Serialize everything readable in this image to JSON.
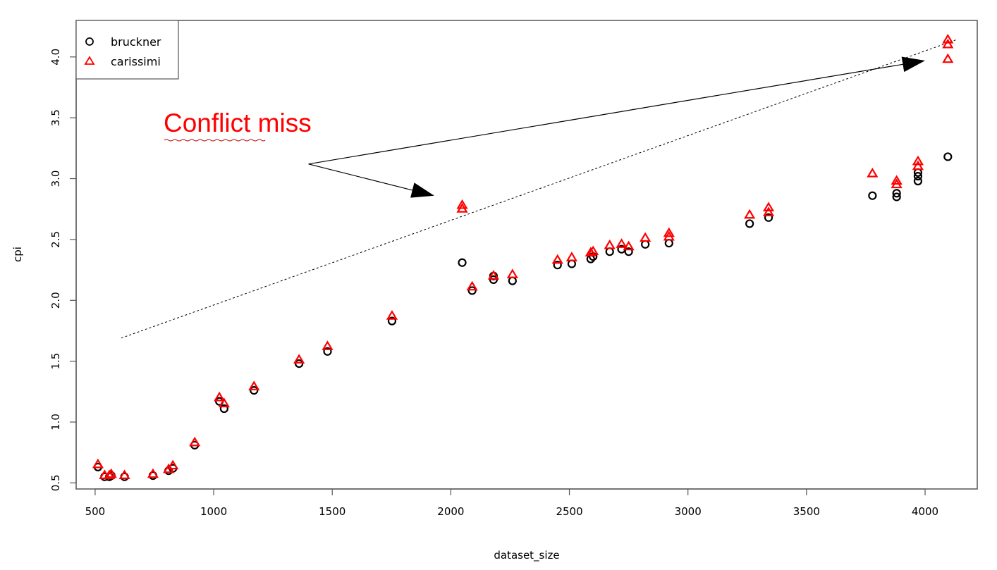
{
  "chart_data": {
    "type": "scatter",
    "title": "",
    "xlabel": "dataset_size",
    "ylabel": "cpi",
    "xlim": [
      420,
      4220
    ],
    "ylim": [
      0.45,
      4.3
    ],
    "xticks": [
      500,
      1000,
      1500,
      2000,
      2500,
      3000,
      3500,
      4000
    ],
    "xtick_labels": [
      "500",
      "1000",
      "1500",
      "2000",
      "2500",
      "3000",
      "3500",
      "4000"
    ],
    "yticks": [
      0.5,
      1.0,
      1.5,
      2.0,
      2.5,
      3.0,
      3.5,
      4.0
    ],
    "ytick_labels": [
      "0.5",
      "1.0",
      "1.5",
      "2.0",
      "2.5",
      "3.0",
      "3.5",
      "4.0"
    ],
    "grid": false,
    "legend_position": "top-left",
    "series": [
      {
        "name": "bruckner",
        "marker": "circle",
        "color": "#000000",
        "points": [
          [
            512,
            0.63
          ],
          [
            540,
            0.55
          ],
          [
            560,
            0.55
          ],
          [
            568,
            0.56
          ],
          [
            624,
            0.55
          ],
          [
            744,
            0.56
          ],
          [
            810,
            0.6
          ],
          [
            828,
            0.62
          ],
          [
            920,
            0.81
          ],
          [
            1024,
            1.17
          ],
          [
            1044,
            1.11
          ],
          [
            1170,
            1.26
          ],
          [
            1360,
            1.48
          ],
          [
            1480,
            1.58
          ],
          [
            1752,
            1.83
          ],
          [
            2048,
            2.31
          ],
          [
            2090,
            2.08
          ],
          [
            2180,
            2.17
          ],
          [
            2180,
            2.2
          ],
          [
            2260,
            2.16
          ],
          [
            2450,
            2.29
          ],
          [
            2510,
            2.3
          ],
          [
            2590,
            2.34
          ],
          [
            2600,
            2.36
          ],
          [
            2670,
            2.4
          ],
          [
            2720,
            2.42
          ],
          [
            2750,
            2.4
          ],
          [
            2820,
            2.46
          ],
          [
            2920,
            2.47
          ],
          [
            3260,
            2.63
          ],
          [
            3340,
            2.68
          ],
          [
            3778,
            2.86
          ],
          [
            3880,
            2.85
          ],
          [
            3880,
            2.88
          ],
          [
            3970,
            2.98
          ],
          [
            3970,
            3.02
          ],
          [
            3970,
            3.05
          ],
          [
            4096,
            3.18
          ]
        ]
      },
      {
        "name": "carissimi",
        "marker": "triangle",
        "color": "#ff0000",
        "points": [
          [
            512,
            0.65
          ],
          [
            540,
            0.56
          ],
          [
            560,
            0.56
          ],
          [
            568,
            0.57
          ],
          [
            624,
            0.56
          ],
          [
            744,
            0.57
          ],
          [
            810,
            0.61
          ],
          [
            828,
            0.64
          ],
          [
            920,
            0.83
          ],
          [
            1024,
            1.2
          ],
          [
            1044,
            1.15
          ],
          [
            1170,
            1.29
          ],
          [
            1360,
            1.51
          ],
          [
            1480,
            1.62
          ],
          [
            1752,
            1.87
          ],
          [
            2048,
            2.75
          ],
          [
            2048,
            2.78
          ],
          [
            2090,
            2.11
          ],
          [
            2180,
            2.2
          ],
          [
            2260,
            2.21
          ],
          [
            2450,
            2.33
          ],
          [
            2510,
            2.35
          ],
          [
            2590,
            2.39
          ],
          [
            2600,
            2.4
          ],
          [
            2670,
            2.45
          ],
          [
            2720,
            2.46
          ],
          [
            2750,
            2.44
          ],
          [
            2820,
            2.51
          ],
          [
            2920,
            2.52
          ],
          [
            2920,
            2.55
          ],
          [
            3260,
            2.7
          ],
          [
            3340,
            2.72
          ],
          [
            3340,
            2.76
          ],
          [
            3778,
            3.04
          ],
          [
            3880,
            2.95
          ],
          [
            3880,
            2.98
          ],
          [
            3970,
            3.1
          ],
          [
            3970,
            3.14
          ],
          [
            4096,
            3.98
          ],
          [
            4096,
            4.1
          ],
          [
            4096,
            4.14
          ]
        ]
      }
    ],
    "annotations": {
      "text": "Conflict miss",
      "text_color": "#ff0000",
      "arrows": [
        {
          "from": [
            1400,
            3.12
          ],
          "to": [
            1930,
            2.86
          ],
          "style": "solid"
        },
        {
          "from": [
            1400,
            3.12
          ],
          "to": [
            4000,
            3.97
          ],
          "style": "solid"
        }
      ],
      "dashed_line": {
        "from": [
          610,
          1.69
        ],
        "to": [
          4130,
          4.14
        ],
        "style": "dashed"
      }
    }
  }
}
